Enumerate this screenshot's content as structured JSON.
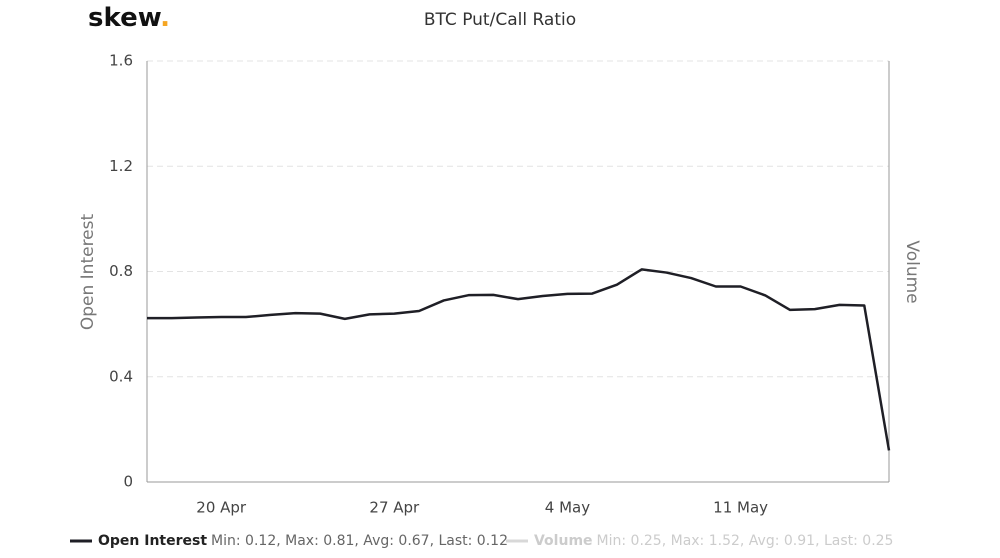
{
  "chart_data": {
    "type": "line",
    "logo": "skew",
    "logo_dot": ".",
    "title": "BTC Put/Call Ratio",
    "y_label": "Open Interest",
    "y2_label": "Volume",
    "categories": [
      null,
      null,
      null,
      "20 Apr",
      null,
      null,
      null,
      null,
      null,
      null,
      "27 Apr",
      null,
      null,
      null,
      null,
      null,
      null,
      "4 May",
      null,
      null,
      null,
      null,
      null,
      null,
      "11 May",
      null,
      null,
      null,
      null,
      null,
      null
    ],
    "series": [
      {
        "name": "Open Interest",
        "color": "#1f1f26",
        "stats": "Min: 0.12, Max: 0.81, Avg: 0.67, Last: 0.12",
        "values": [
          0.623,
          0.623,
          0.625,
          0.627,
          0.627,
          0.635,
          0.642,
          0.64,
          0.62,
          0.637,
          0.64,
          0.65,
          0.69,
          0.71,
          0.711,
          0.695,
          0.707,
          0.715,
          0.716,
          0.75,
          0.808,
          0.796,
          0.775,
          0.743,
          0.743,
          0.709,
          0.654,
          0.657,
          0.673,
          0.671,
          0.12
        ]
      },
      {
        "name": "Volume",
        "color": "#d8d8d8",
        "stats": "Min: 0.25, Max: 1.52, Avg: 0.91, Last: 0.25",
        "hidden": true
      }
    ],
    "ylim": [
      0,
      1.6
    ],
    "yticks": [
      0,
      {
        "value": 0.4,
        "label": "0.4"
      },
      {
        "value": 0.8,
        "label": "0.8"
      },
      {
        "value": 1.2,
        "label": "1.2"
      },
      {
        "value": 1.6,
        "label": "1.6"
      }
    ],
    "grid": true
  }
}
